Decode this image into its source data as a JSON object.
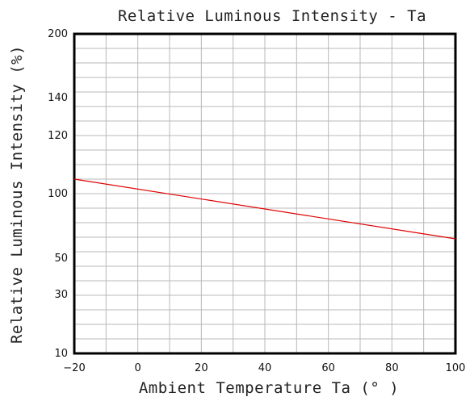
{
  "chart_data": {
    "type": "line",
    "title": "Relative Luminous Intensity - Ta",
    "xlabel": "Ambient Temperature Ta (° )",
    "ylabel": "Relative Luminous Intensity (%)",
    "x_ticks": [
      -20,
      0,
      20,
      40,
      60,
      80,
      100
    ],
    "x_tick_labels": [
      "−20",
      "0",
      "20",
      "40",
      "60",
      "80",
      "100"
    ],
    "xlim": [
      -20,
      100
    ],
    "y_tick_labels": [
      "200",
      "140",
      "120",
      "100",
      "50",
      "30",
      "10"
    ],
    "y_scale": "nonlinear (tick spacing as printed)",
    "grid": true,
    "series": [
      {
        "x": [
          -20,
          100
        ],
        "y": [
          105,
          65
        ],
        "color": "#e00000"
      }
    ]
  },
  "colors": {
    "line": "#e00000",
    "grid": "#b8b8b8",
    "frame": "#000000"
  }
}
